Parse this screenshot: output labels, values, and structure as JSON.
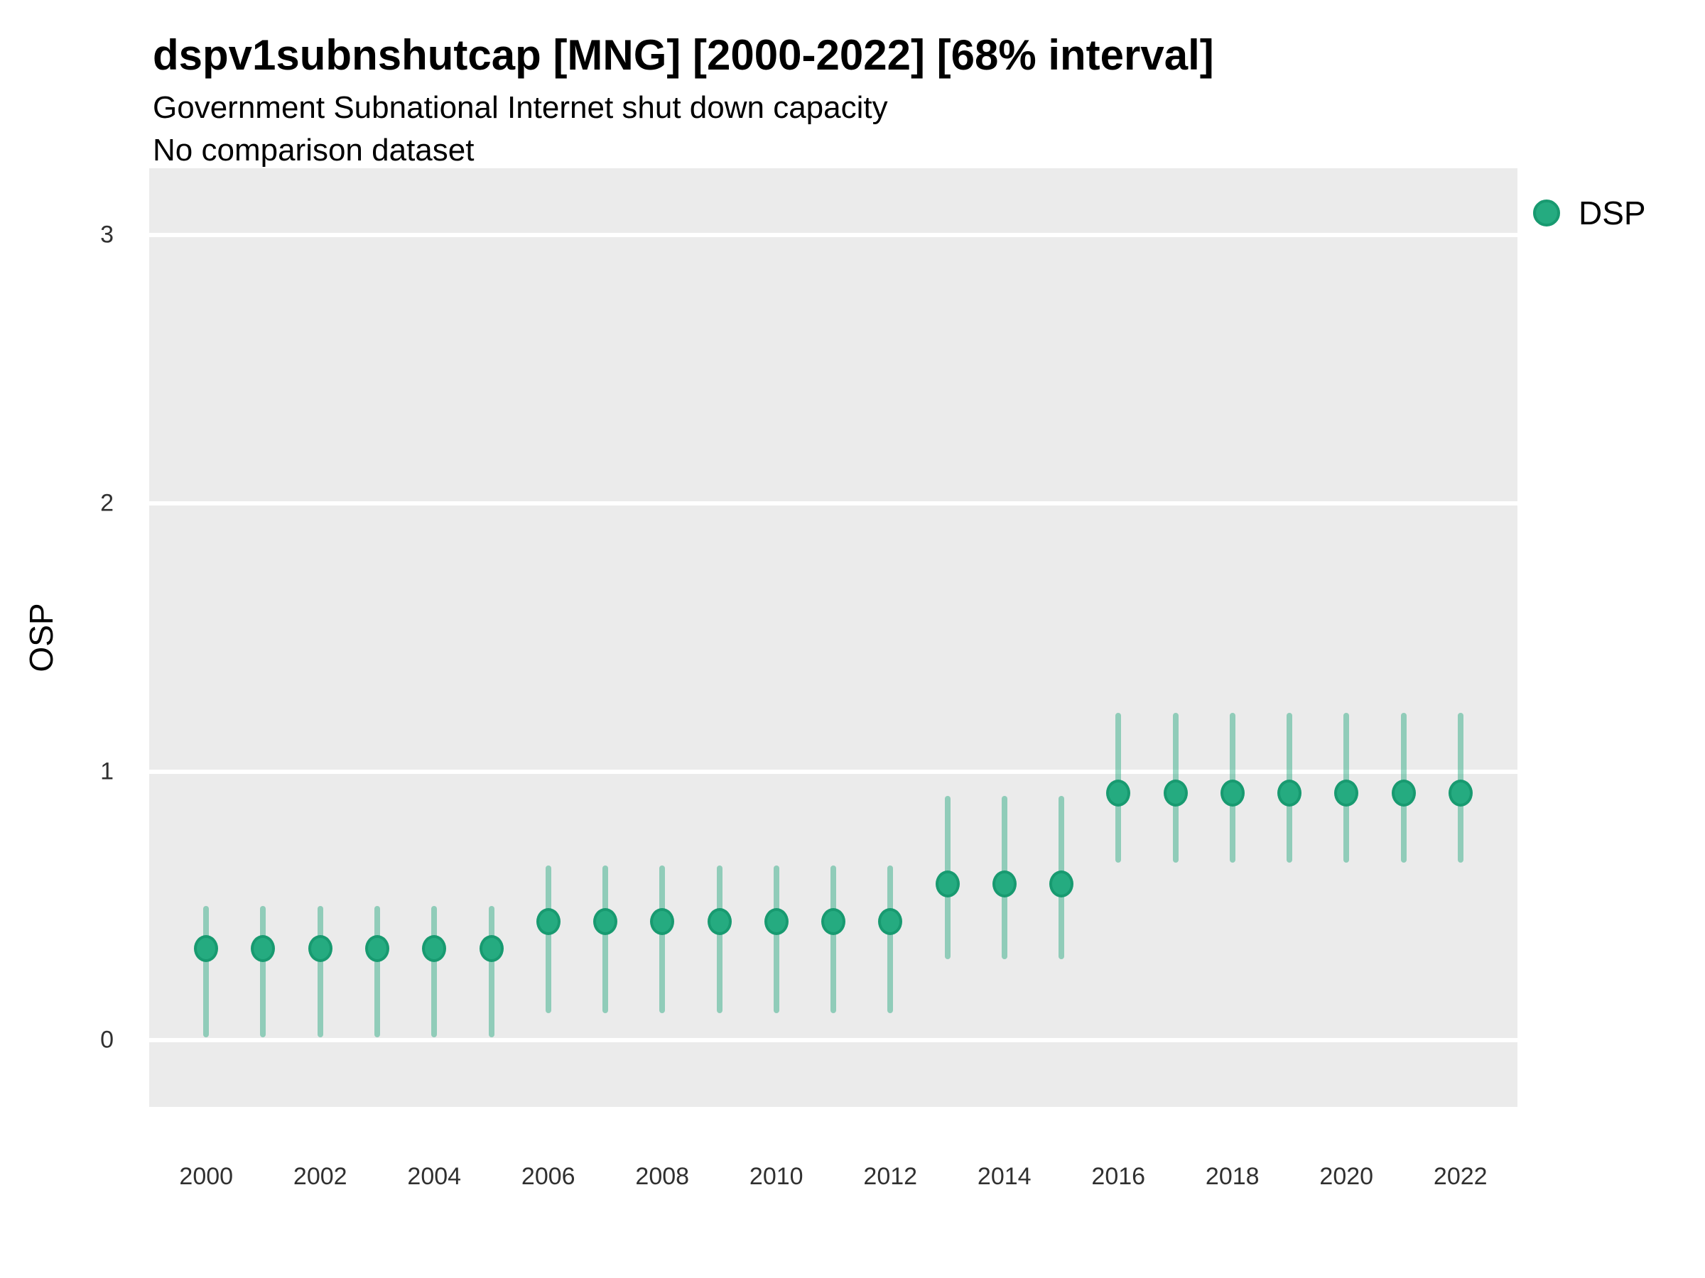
{
  "header": {
    "title": "dspv1subnshutcap [MNG] [2000-2022] [68% interval]",
    "subtitle": "Government Subnational Internet shut down capacity",
    "note": "No comparison dataset"
  },
  "legend": {
    "position": "right",
    "items": [
      {
        "label": "DSP",
        "color": "#21a77d"
      }
    ]
  },
  "colors": {
    "page_background": "#ffffff",
    "panel_background": "#ebebeb",
    "gridline": "#ffffff",
    "point_fill": "#25ab80",
    "point_stroke": "#189a70",
    "interval": "rgba(33,167,125,0.45)",
    "tick_label": "#303030",
    "text": "#000000"
  },
  "chart_data": {
    "type": "scatter",
    "variant": "pointrange",
    "title": "dspv1subnshutcap [MNG] [2000-2022] [68% interval]",
    "subtitle": "Government Subnational Internet shut down capacity",
    "annotation": "No comparison dataset",
    "interval_level": "68%",
    "xlabel": "",
    "ylabel": "OSP",
    "xlim": [
      1999,
      2023
    ],
    "ylim": [
      -0.25,
      3.25
    ],
    "x_ticks": [
      2000,
      2002,
      2004,
      2006,
      2008,
      2010,
      2012,
      2014,
      2016,
      2018,
      2020,
      2022
    ],
    "y_ticks": [
      0,
      1,
      2,
      3
    ],
    "grid": "horizontal-major-only",
    "legend_position": "right",
    "series": [
      {
        "name": "DSP",
        "point_color": "#25ab80",
        "point_stroke": "#189a70",
        "interval_color": "rgba(33,167,125,0.45)",
        "x": [
          2000,
          2001,
          2002,
          2003,
          2004,
          2005,
          2006,
          2007,
          2008,
          2009,
          2010,
          2011,
          2012,
          2013,
          2014,
          2015,
          2016,
          2017,
          2018,
          2019,
          2020,
          2021,
          2022
        ],
        "y": [
          0.34,
          0.34,
          0.34,
          0.34,
          0.34,
          0.34,
          0.44,
          0.44,
          0.44,
          0.44,
          0.44,
          0.44,
          0.44,
          0.58,
          0.58,
          0.58,
          0.92,
          0.92,
          0.92,
          0.92,
          0.92,
          0.92,
          0.92
        ],
        "y_low": [
          0.01,
          0.01,
          0.01,
          0.01,
          0.01,
          0.01,
          0.1,
          0.1,
          0.1,
          0.1,
          0.1,
          0.1,
          0.1,
          0.3,
          0.3,
          0.3,
          0.66,
          0.66,
          0.66,
          0.66,
          0.66,
          0.66,
          0.66
        ],
        "y_high": [
          0.5,
          0.5,
          0.5,
          0.5,
          0.5,
          0.5,
          0.65,
          0.65,
          0.65,
          0.65,
          0.65,
          0.65,
          0.65,
          0.91,
          0.91,
          0.91,
          1.22,
          1.22,
          1.22,
          1.22,
          1.22,
          1.22,
          1.22
        ]
      }
    ]
  }
}
